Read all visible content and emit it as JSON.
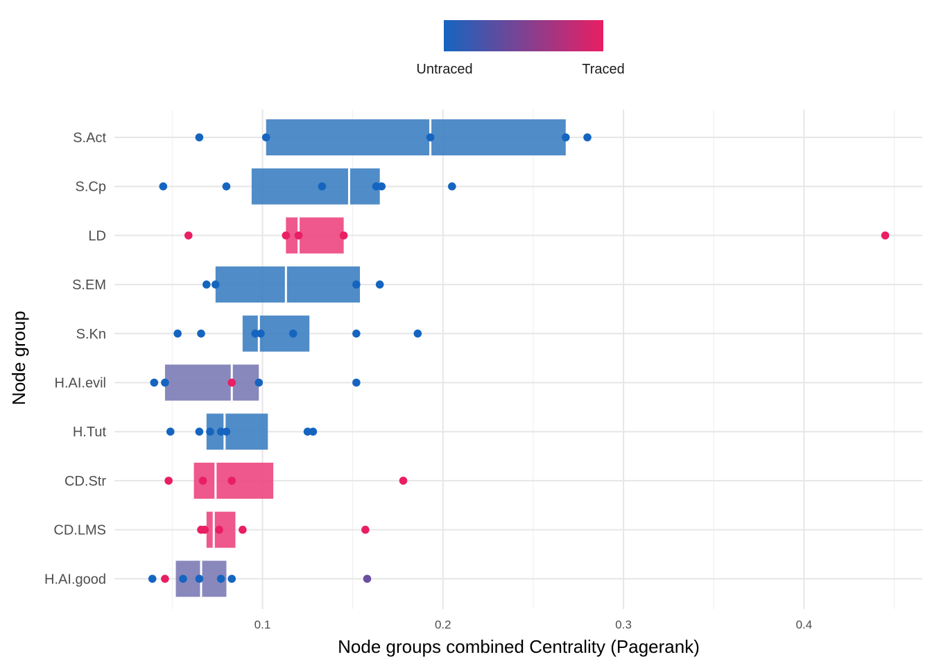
{
  "chart_data": {
    "type": "boxplot-with-points",
    "xlabel": "Node groups combined Centrality (Pagerank)",
    "ylabel": "Node group",
    "xlim": [
      0.018,
      0.467
    ],
    "x_ticks": [
      "0.1",
      "0.2",
      "0.3",
      "0.4"
    ],
    "x_tick_values": [
      0.1,
      0.2,
      0.3,
      0.4
    ],
    "x_minor_values": [
      0.05,
      0.15,
      0.25,
      0.35,
      0.45
    ],
    "grid": true,
    "legend": {
      "position": "top",
      "type": "gradient",
      "low_label": "Untraced",
      "high_label": "Traced",
      "low_color": "#1565c0",
      "high_color": "#e91e63"
    },
    "categories": [
      "S.Act",
      "S.Cp",
      "LD",
      "S.EM",
      "S.Kn",
      "H.AI.evil",
      "H.Tut",
      "CD.Str",
      "CD.LMS",
      "H.AI.good"
    ],
    "groups": [
      {
        "name": "S.Act",
        "q1": 0.102,
        "median": 0.193,
        "q3": 0.268,
        "fill": "#3d7fc1",
        "points": [
          {
            "x": 0.065,
            "c": "#1565c0"
          },
          {
            "x": 0.102,
            "c": "#1565c0"
          },
          {
            "x": 0.193,
            "c": "#1565c0"
          },
          {
            "x": 0.268,
            "c": "#1565c0"
          },
          {
            "x": 0.28,
            "c": "#1565c0"
          }
        ]
      },
      {
        "name": "S.Cp",
        "q1": 0.094,
        "median": 0.148,
        "q3": 0.165,
        "fill": "#3d7fc1",
        "points": [
          {
            "x": 0.045,
            "c": "#1565c0"
          },
          {
            "x": 0.08,
            "c": "#1565c0"
          },
          {
            "x": 0.133,
            "c": "#1565c0"
          },
          {
            "x": 0.163,
            "c": "#1565c0"
          },
          {
            "x": 0.166,
            "c": "#1565c0"
          },
          {
            "x": 0.205,
            "c": "#1565c0"
          }
        ]
      },
      {
        "name": "LD",
        "q1": 0.113,
        "median": 0.12,
        "q3": 0.145,
        "fill": "#ec4680",
        "points": [
          {
            "x": 0.059,
            "c": "#e91e63"
          },
          {
            "x": 0.113,
            "c": "#e91e63"
          },
          {
            "x": 0.12,
            "c": "#e91e63"
          },
          {
            "x": 0.145,
            "c": "#e91e63"
          },
          {
            "x": 0.445,
            "c": "#e91e63"
          }
        ]
      },
      {
        "name": "S.EM",
        "q1": 0.074,
        "median": 0.113,
        "q3": 0.154,
        "fill": "#3d7fc1",
        "points": [
          {
            "x": 0.069,
            "c": "#1565c0"
          },
          {
            "x": 0.074,
            "c": "#1565c0"
          },
          {
            "x": 0.152,
            "c": "#1565c0"
          },
          {
            "x": 0.165,
            "c": "#1565c0"
          }
        ]
      },
      {
        "name": "S.Kn",
        "q1": 0.089,
        "median": 0.098,
        "q3": 0.126,
        "fill": "#3d7fc1",
        "points": [
          {
            "x": 0.053,
            "c": "#1565c0"
          },
          {
            "x": 0.066,
            "c": "#1565c0"
          },
          {
            "x": 0.096,
            "c": "#1565c0"
          },
          {
            "x": 0.099,
            "c": "#1565c0"
          },
          {
            "x": 0.117,
            "c": "#1565c0"
          },
          {
            "x": 0.152,
            "c": "#1565c0"
          },
          {
            "x": 0.186,
            "c": "#1565c0"
          }
        ]
      },
      {
        "name": "H.AI.evil",
        "q1": 0.046,
        "median": 0.083,
        "q3": 0.098,
        "fill": "#7c7bb5",
        "points": [
          {
            "x": 0.04,
            "c": "#1565c0"
          },
          {
            "x": 0.046,
            "c": "#1565c0"
          },
          {
            "x": 0.083,
            "c": "#e91e63"
          },
          {
            "x": 0.098,
            "c": "#1565c0"
          },
          {
            "x": 0.152,
            "c": "#1565c0"
          }
        ]
      },
      {
        "name": "H.Tut",
        "q1": 0.069,
        "median": 0.079,
        "q3": 0.103,
        "fill": "#3d7fc1",
        "points": [
          {
            "x": 0.049,
            "c": "#1565c0"
          },
          {
            "x": 0.065,
            "c": "#1565c0"
          },
          {
            "x": 0.071,
            "c": "#1565c0"
          },
          {
            "x": 0.077,
            "c": "#1565c0"
          },
          {
            "x": 0.08,
            "c": "#1565c0"
          },
          {
            "x": 0.125,
            "c": "#1565c0"
          },
          {
            "x": 0.128,
            "c": "#1565c0"
          }
        ]
      },
      {
        "name": "CD.Str",
        "q1": 0.062,
        "median": 0.074,
        "q3": 0.106,
        "fill": "#ec4680",
        "points": [
          {
            "x": 0.048,
            "c": "#e91e63"
          },
          {
            "x": 0.067,
            "c": "#e91e63"
          },
          {
            "x": 0.083,
            "c": "#e91e63"
          },
          {
            "x": 0.178,
            "c": "#e91e63"
          }
        ]
      },
      {
        "name": "CD.LMS",
        "q1": 0.069,
        "median": 0.073,
        "q3": 0.085,
        "fill": "#ec4680",
        "points": [
          {
            "x": 0.066,
            "c": "#e91e63"
          },
          {
            "x": 0.068,
            "c": "#e91e63"
          },
          {
            "x": 0.076,
            "c": "#e91e63"
          },
          {
            "x": 0.089,
            "c": "#e91e63"
          },
          {
            "x": 0.157,
            "c": "#e91e63"
          }
        ]
      },
      {
        "name": "H.AI.good",
        "q1": 0.052,
        "median": 0.066,
        "q3": 0.08,
        "fill": "#7c7bb5",
        "points": [
          {
            "x": 0.039,
            "c": "#1565c0"
          },
          {
            "x": 0.046,
            "c": "#e91e63"
          },
          {
            "x": 0.056,
            "c": "#1565c0"
          },
          {
            "x": 0.065,
            "c": "#1565c0"
          },
          {
            "x": 0.077,
            "c": "#1565c0"
          },
          {
            "x": 0.083,
            "c": "#1565c0"
          },
          {
            "x": 0.158,
            "c": "#6a4f9e"
          }
        ]
      }
    ]
  }
}
